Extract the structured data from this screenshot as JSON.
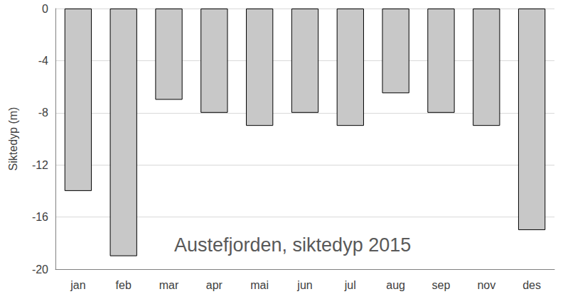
{
  "chart_data": {
    "type": "bar",
    "title": "Austefjorden, siktedyp 2015",
    "y_label": "Siktedyp (m)",
    "categories": [
      "jan",
      "feb",
      "mar",
      "apr",
      "mai",
      "jun",
      "jul",
      "aug",
      "sep",
      "nov",
      "des"
    ],
    "values": [
      -14,
      -19,
      -7,
      -8,
      -9,
      -8,
      -9,
      -6.5,
      -8,
      -9,
      -17
    ],
    "color": "#c8c8c8",
    "ylim": [
      -20,
      0
    ],
    "yticks": [
      -20,
      -16,
      -12,
      -8,
      -4,
      0
    ],
    "grid": true,
    "data_labels": false
  }
}
